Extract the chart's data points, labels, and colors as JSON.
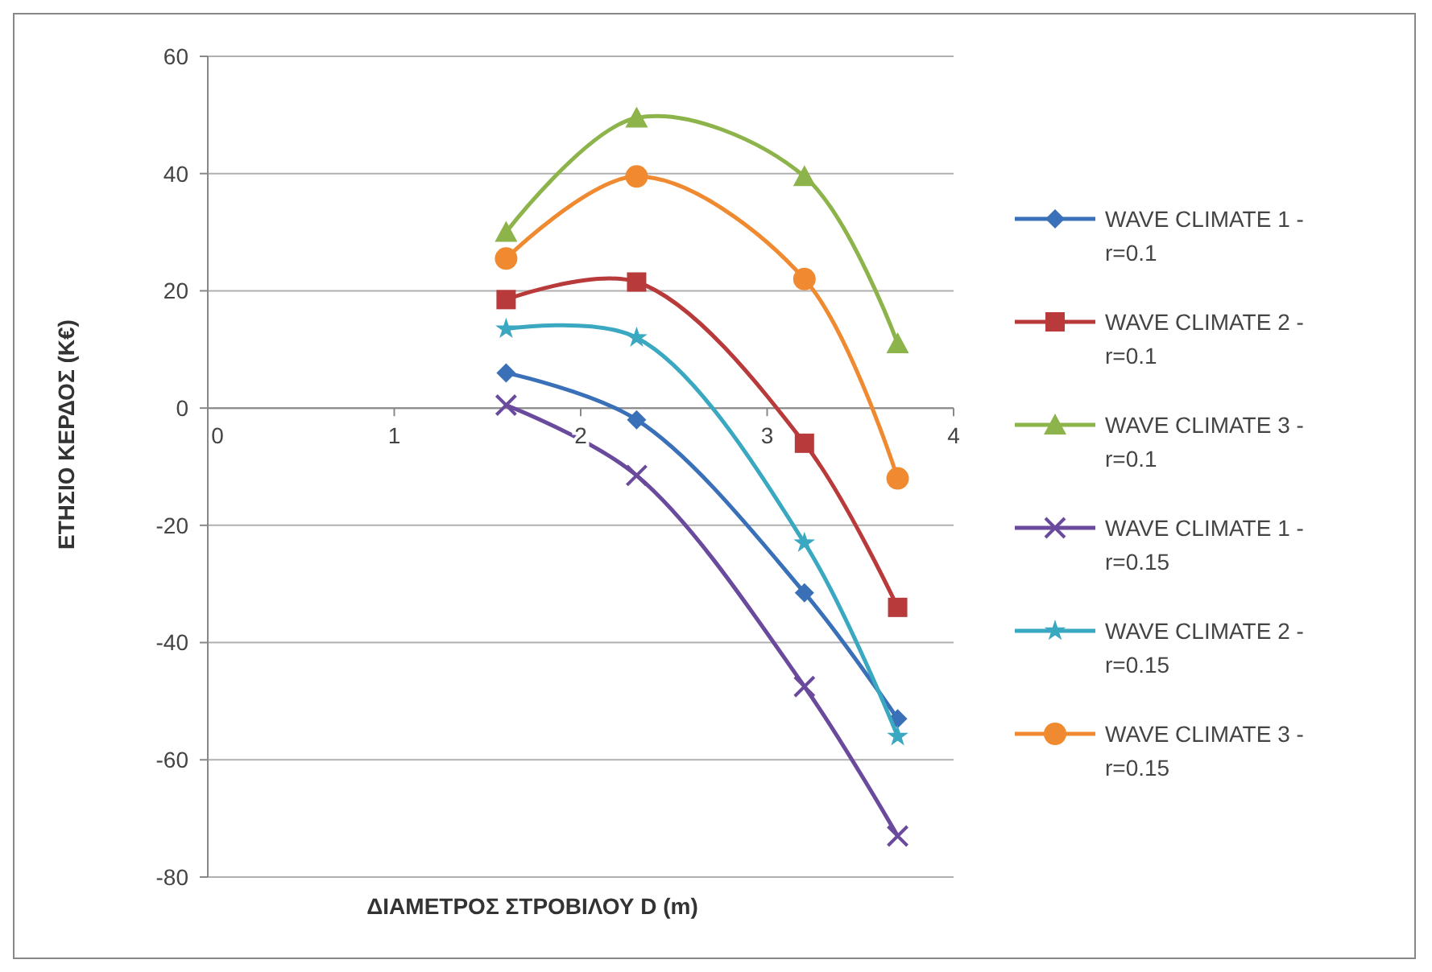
{
  "chart_data": {
    "type": "line",
    "xlabel": "ΔΙΑΜΕΤΡΟΣ ΣΤΡΟΒΙΛΟΥ D (m)",
    "ylabel": "ΕΤΗΣΙΟ ΚΕΡΔΟΣ (K€)",
    "xlim": [
      0,
      4
    ],
    "xticks": [
      0,
      1,
      2,
      3,
      4
    ],
    "ylim": [
      -80,
      60
    ],
    "yticks": [
      -80,
      -60,
      -40,
      -20,
      0,
      20,
      40,
      60
    ],
    "grid": "y",
    "legend": "right",
    "series": [
      {
        "name": "WAVE CLIMATE 1 - r=0.1",
        "color": "#3a70b8",
        "marker": "diamond",
        "x": [
          1.6,
          2.3,
          3.2,
          3.7
        ],
        "values": [
          6,
          -2,
          -31.5,
          -53
        ]
      },
      {
        "name": "WAVE CLIMATE 2 - r=0.1",
        "color": "#b83a3a",
        "marker": "square",
        "x": [
          1.6,
          2.3,
          3.2,
          3.7
        ],
        "values": [
          18.5,
          21.5,
          -6,
          -34
        ]
      },
      {
        "name": "WAVE CLIMATE 3 - r=0.1",
        "color": "#8cb44a",
        "marker": "triangle",
        "x": [
          1.6,
          2.3,
          3.2,
          3.7
        ],
        "values": [
          30,
          49.5,
          39.5,
          11
        ]
      },
      {
        "name": "WAVE CLIMATE 1 - r=0.15",
        "color": "#6a4a9c",
        "marker": "cross",
        "x": [
          1.6,
          2.3,
          3.2,
          3.7
        ],
        "values": [
          0.5,
          -11.5,
          -47.5,
          -73
        ]
      },
      {
        "name": "WAVE CLIMATE 2 - r=0.15",
        "color": "#3aa8c0",
        "marker": "star",
        "x": [
          1.6,
          2.3,
          3.2,
          3.7
        ],
        "values": [
          13.5,
          12,
          -23,
          -56
        ]
      },
      {
        "name": "WAVE CLIMATE 3 - r=0.15",
        "color": "#f08a30",
        "marker": "circle",
        "x": [
          1.6,
          2.3,
          3.2,
          3.7
        ],
        "values": [
          25.5,
          39.5,
          22,
          -12
        ]
      }
    ]
  }
}
